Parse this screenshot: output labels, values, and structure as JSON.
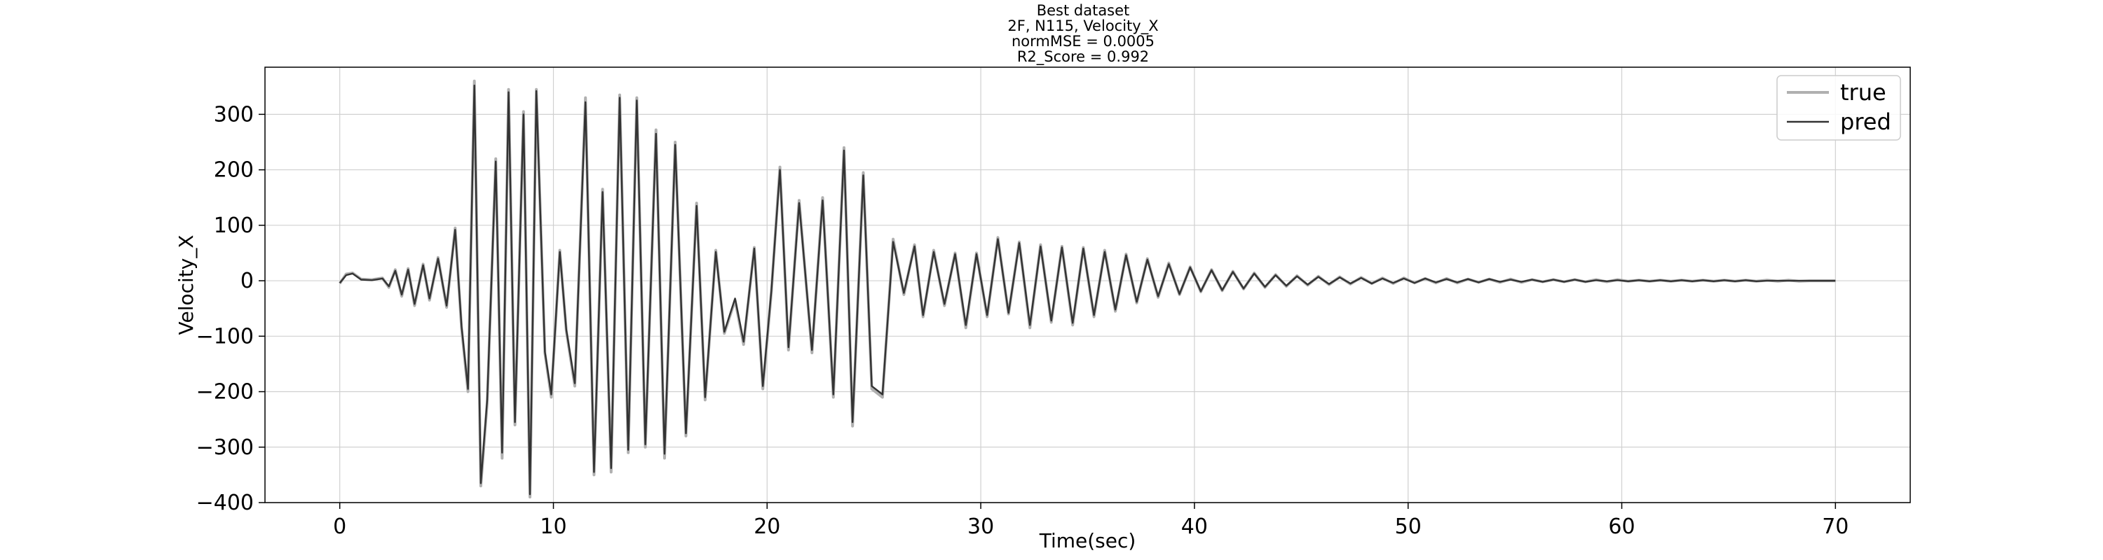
{
  "chart_data": {
    "type": "line",
    "title_lines": [
      "Best dataset",
      "2F, N115, Velocity_X",
      "normMSE = 0.0005",
      "R2_Score = 0.992"
    ],
    "xlabel": "Time(sec)",
    "ylabel": "Velocity_X",
    "xlim": [
      -3.5,
      73.5
    ],
    "ylim": [
      -400,
      385
    ],
    "xticks": [
      0,
      10,
      20,
      30,
      40,
      50,
      60,
      70
    ],
    "yticks": [
      -400,
      -300,
      -200,
      -100,
      0,
      100,
      200,
      300
    ],
    "grid": true,
    "legend_position": "top-right",
    "series": [
      {
        "name": "true",
        "color": "#b0b0b0",
        "points": [
          [
            0,
            -5
          ],
          [
            0.3,
            12
          ],
          [
            0.6,
            14
          ],
          [
            1.0,
            3
          ],
          [
            1.5,
            2
          ],
          [
            2.0,
            5
          ],
          [
            2.3,
            -12
          ],
          [
            2.6,
            20
          ],
          [
            2.9,
            -28
          ],
          [
            3.2,
            22
          ],
          [
            3.5,
            -45
          ],
          [
            3.9,
            30
          ],
          [
            4.2,
            -35
          ],
          [
            4.6,
            42
          ],
          [
            5.0,
            -48
          ],
          [
            5.4,
            95
          ],
          [
            5.7,
            -85
          ],
          [
            6.0,
            -200
          ],
          [
            6.3,
            360
          ],
          [
            6.6,
            -370
          ],
          [
            6.9,
            -220
          ],
          [
            7.3,
            220
          ],
          [
            7.6,
            -320
          ],
          [
            7.9,
            345
          ],
          [
            8.2,
            -260
          ],
          [
            8.6,
            305
          ],
          [
            8.9,
            -390
          ],
          [
            9.2,
            345
          ],
          [
            9.6,
            -130
          ],
          [
            9.9,
            -210
          ],
          [
            10.3,
            55
          ],
          [
            10.6,
            -90
          ],
          [
            11.0,
            -190
          ],
          [
            11.5,
            330
          ],
          [
            11.9,
            -350
          ],
          [
            12.3,
            165
          ],
          [
            12.7,
            -345
          ],
          [
            13.1,
            335
          ],
          [
            13.5,
            -310
          ],
          [
            13.9,
            330
          ],
          [
            14.3,
            -300
          ],
          [
            14.8,
            272
          ],
          [
            15.2,
            -320
          ],
          [
            15.7,
            250
          ],
          [
            16.2,
            -280
          ],
          [
            16.7,
            140
          ],
          [
            17.1,
            -215
          ],
          [
            17.6,
            55
          ],
          [
            18.0,
            -95
          ],
          [
            18.5,
            -35
          ],
          [
            18.9,
            -115
          ],
          [
            19.4,
            60
          ],
          [
            19.8,
            -195
          ],
          [
            20.2,
            -20
          ],
          [
            20.6,
            205
          ],
          [
            21.0,
            -125
          ],
          [
            21.5,
            145
          ],
          [
            22.1,
            -130
          ],
          [
            22.6,
            150
          ],
          [
            23.1,
            -210
          ],
          [
            23.6,
            240
          ],
          [
            24.0,
            -262
          ],
          [
            24.5,
            195
          ],
          [
            24.9,
            -195
          ],
          [
            25.4,
            -210
          ],
          [
            25.9,
            75
          ],
          [
            26.4,
            -25
          ],
          [
            26.9,
            65
          ],
          [
            27.3,
            -65
          ],
          [
            27.8,
            55
          ],
          [
            28.3,
            -45
          ],
          [
            28.8,
            50
          ],
          [
            29.3,
            -85
          ],
          [
            29.8,
            50
          ],
          [
            30.3,
            -65
          ],
          [
            30.8,
            78
          ],
          [
            31.3,
            -60
          ],
          [
            31.8,
            70
          ],
          [
            32.3,
            -85
          ],
          [
            32.8,
            65
          ],
          [
            33.3,
            -75
          ],
          [
            33.8,
            62
          ],
          [
            34.3,
            -80
          ],
          [
            34.8,
            60
          ],
          [
            35.3,
            -65
          ],
          [
            35.8,
            55
          ],
          [
            36.3,
            -55
          ],
          [
            36.8,
            48
          ],
          [
            37.3,
            -40
          ],
          [
            37.8,
            40
          ],
          [
            38.3,
            -30
          ],
          [
            38.8,
            32
          ],
          [
            39.3,
            -25
          ],
          [
            39.8,
            25
          ],
          [
            40.3,
            -20
          ],
          [
            40.8,
            20
          ],
          [
            41.3,
            -18
          ],
          [
            41.8,
            17
          ],
          [
            42.3,
            -15
          ],
          [
            42.8,
            14
          ],
          [
            43.3,
            -12
          ],
          [
            43.8,
            11
          ],
          [
            44.3,
            -10
          ],
          [
            44.8,
            9
          ],
          [
            45.3,
            -8
          ],
          [
            45.8,
            8
          ],
          [
            46.3,
            -7
          ],
          [
            46.8,
            7
          ],
          [
            47.3,
            -6
          ],
          [
            47.8,
            6
          ],
          [
            48.3,
            -5
          ],
          [
            48.8,
            5
          ],
          [
            49.3,
            -5
          ],
          [
            49.8,
            5
          ],
          [
            50.3,
            -4
          ],
          [
            50.8,
            4
          ],
          [
            51.3,
            -4
          ],
          [
            51.8,
            4
          ],
          [
            52.3,
            -4
          ],
          [
            52.8,
            3
          ],
          [
            53.3,
            -3
          ],
          [
            53.8,
            3
          ],
          [
            54.3,
            -3
          ],
          [
            54.8,
            3
          ],
          [
            55.3,
            -3
          ],
          [
            55.8,
            2
          ],
          [
            56.3,
            -2
          ],
          [
            56.8,
            2
          ],
          [
            57.3,
            -2
          ],
          [
            57.8,
            2
          ],
          [
            58.3,
            -2
          ],
          [
            58.8,
            2
          ],
          [
            59.3,
            -2
          ],
          [
            59.8,
            2
          ],
          [
            60.3,
            -1
          ],
          [
            60.8,
            1
          ],
          [
            61.3,
            -1
          ],
          [
            61.8,
            1
          ],
          [
            62.3,
            -1
          ],
          [
            62.8,
            1
          ],
          [
            63.3,
            -1
          ],
          [
            63.8,
            1
          ],
          [
            64.3,
            -1
          ],
          [
            64.8,
            1
          ],
          [
            65.3,
            -1
          ],
          [
            65.8,
            1
          ],
          [
            66.3,
            -1
          ],
          [
            66.8,
            1
          ],
          [
            67.3,
            -1
          ],
          [
            67.8,
            1
          ],
          [
            68.3,
            -1
          ],
          [
            68.8,
            0
          ],
          [
            69.3,
            0
          ],
          [
            70.0,
            0
          ]
        ]
      },
      {
        "name": "pred",
        "color": "#333333",
        "points": [
          [
            0,
            -4
          ],
          [
            0.3,
            10
          ],
          [
            0.6,
            13
          ],
          [
            1.0,
            2
          ],
          [
            1.5,
            1
          ],
          [
            2.0,
            4
          ],
          [
            2.3,
            -10
          ],
          [
            2.6,
            18
          ],
          [
            2.9,
            -25
          ],
          [
            3.2,
            20
          ],
          [
            3.5,
            -42
          ],
          [
            3.9,
            28
          ],
          [
            4.2,
            -32
          ],
          [
            4.6,
            40
          ],
          [
            5.0,
            -45
          ],
          [
            5.4,
            92
          ],
          [
            5.7,
            -82
          ],
          [
            6.0,
            -195
          ],
          [
            6.3,
            352
          ],
          [
            6.6,
            -365
          ],
          [
            6.9,
            -215
          ],
          [
            7.3,
            215
          ],
          [
            7.6,
            -310
          ],
          [
            7.9,
            340
          ],
          [
            8.2,
            -255
          ],
          [
            8.6,
            300
          ],
          [
            8.9,
            -385
          ],
          [
            9.2,
            342
          ],
          [
            9.6,
            -128
          ],
          [
            9.9,
            -205
          ],
          [
            10.3,
            52
          ],
          [
            10.6,
            -88
          ],
          [
            11.0,
            -185
          ],
          [
            11.5,
            322
          ],
          [
            11.9,
            -345
          ],
          [
            12.3,
            160
          ],
          [
            12.7,
            -338
          ],
          [
            13.1,
            330
          ],
          [
            13.5,
            -305
          ],
          [
            13.9,
            325
          ],
          [
            14.3,
            -295
          ],
          [
            14.8,
            265
          ],
          [
            15.2,
            -312
          ],
          [
            15.7,
            245
          ],
          [
            16.2,
            -275
          ],
          [
            16.7,
            135
          ],
          [
            17.1,
            -210
          ],
          [
            17.6,
            52
          ],
          [
            18.0,
            -92
          ],
          [
            18.5,
            -32
          ],
          [
            18.9,
            -110
          ],
          [
            19.4,
            58
          ],
          [
            19.8,
            -190
          ],
          [
            20.2,
            -18
          ],
          [
            20.6,
            200
          ],
          [
            21.0,
            -120
          ],
          [
            21.5,
            140
          ],
          [
            22.1,
            -125
          ],
          [
            22.6,
            145
          ],
          [
            23.1,
            -205
          ],
          [
            23.6,
            235
          ],
          [
            24.0,
            -255
          ],
          [
            24.5,
            190
          ],
          [
            24.9,
            -190
          ],
          [
            25.4,
            -205
          ],
          [
            25.9,
            70
          ],
          [
            26.4,
            -22
          ],
          [
            26.9,
            62
          ],
          [
            27.3,
            -62
          ],
          [
            27.8,
            52
          ],
          [
            28.3,
            -42
          ],
          [
            28.8,
            48
          ],
          [
            29.3,
            -80
          ],
          [
            29.8,
            48
          ],
          [
            30.3,
            -62
          ],
          [
            30.8,
            75
          ],
          [
            31.3,
            -58
          ],
          [
            31.8,
            68
          ],
          [
            32.3,
            -80
          ],
          [
            32.8,
            62
          ],
          [
            33.3,
            -72
          ],
          [
            33.8,
            60
          ],
          [
            34.3,
            -76
          ],
          [
            34.8,
            58
          ],
          [
            35.3,
            -62
          ],
          [
            35.8,
            52
          ],
          [
            36.3,
            -52
          ],
          [
            36.8,
            46
          ],
          [
            37.3,
            -38
          ],
          [
            37.8,
            38
          ],
          [
            38.3,
            -28
          ],
          [
            38.8,
            30
          ],
          [
            39.3,
            -24
          ],
          [
            39.8,
            24
          ],
          [
            40.3,
            -19
          ],
          [
            40.8,
            19
          ],
          [
            41.3,
            -17
          ],
          [
            41.8,
            16
          ],
          [
            42.3,
            -14
          ],
          [
            42.8,
            13
          ],
          [
            43.3,
            -11
          ],
          [
            43.8,
            10
          ],
          [
            44.3,
            -9
          ],
          [
            44.8,
            8
          ],
          [
            45.3,
            -7
          ],
          [
            45.8,
            7
          ],
          [
            46.3,
            -6
          ],
          [
            46.8,
            6
          ],
          [
            47.3,
            -5
          ],
          [
            47.8,
            5
          ],
          [
            48.3,
            -5
          ],
          [
            48.8,
            4
          ],
          [
            49.3,
            -4
          ],
          [
            49.8,
            4
          ],
          [
            50.3,
            -4
          ],
          [
            50.8,
            4
          ],
          [
            51.3,
            -3
          ],
          [
            51.8,
            3
          ],
          [
            52.3,
            -3
          ],
          [
            52.8,
            3
          ],
          [
            53.3,
            -3
          ],
          [
            53.8,
            3
          ],
          [
            54.3,
            -2
          ],
          [
            54.8,
            2
          ],
          [
            55.3,
            -2
          ],
          [
            55.8,
            2
          ],
          [
            56.3,
            -2
          ],
          [
            56.8,
            2
          ],
          [
            57.3,
            -2
          ],
          [
            57.8,
            2
          ],
          [
            58.3,
            -2
          ],
          [
            58.8,
            1
          ],
          [
            59.3,
            -1
          ],
          [
            59.8,
            1
          ],
          [
            60.3,
            -1
          ],
          [
            60.8,
            1
          ],
          [
            61.3,
            -1
          ],
          [
            61.8,
            1
          ],
          [
            62.3,
            -1
          ],
          [
            62.8,
            1
          ],
          [
            63.3,
            -1
          ],
          [
            63.8,
            1
          ],
          [
            64.3,
            -1
          ],
          [
            64.8,
            1
          ],
          [
            65.3,
            -1
          ],
          [
            65.8,
            1
          ],
          [
            66.3,
            -1
          ],
          [
            66.8,
            0
          ],
          [
            67.3,
            0
          ],
          [
            67.8,
            0
          ],
          [
            68.3,
            0
          ],
          [
            68.8,
            0
          ],
          [
            69.3,
            0
          ],
          [
            70.0,
            0
          ]
        ]
      }
    ]
  }
}
